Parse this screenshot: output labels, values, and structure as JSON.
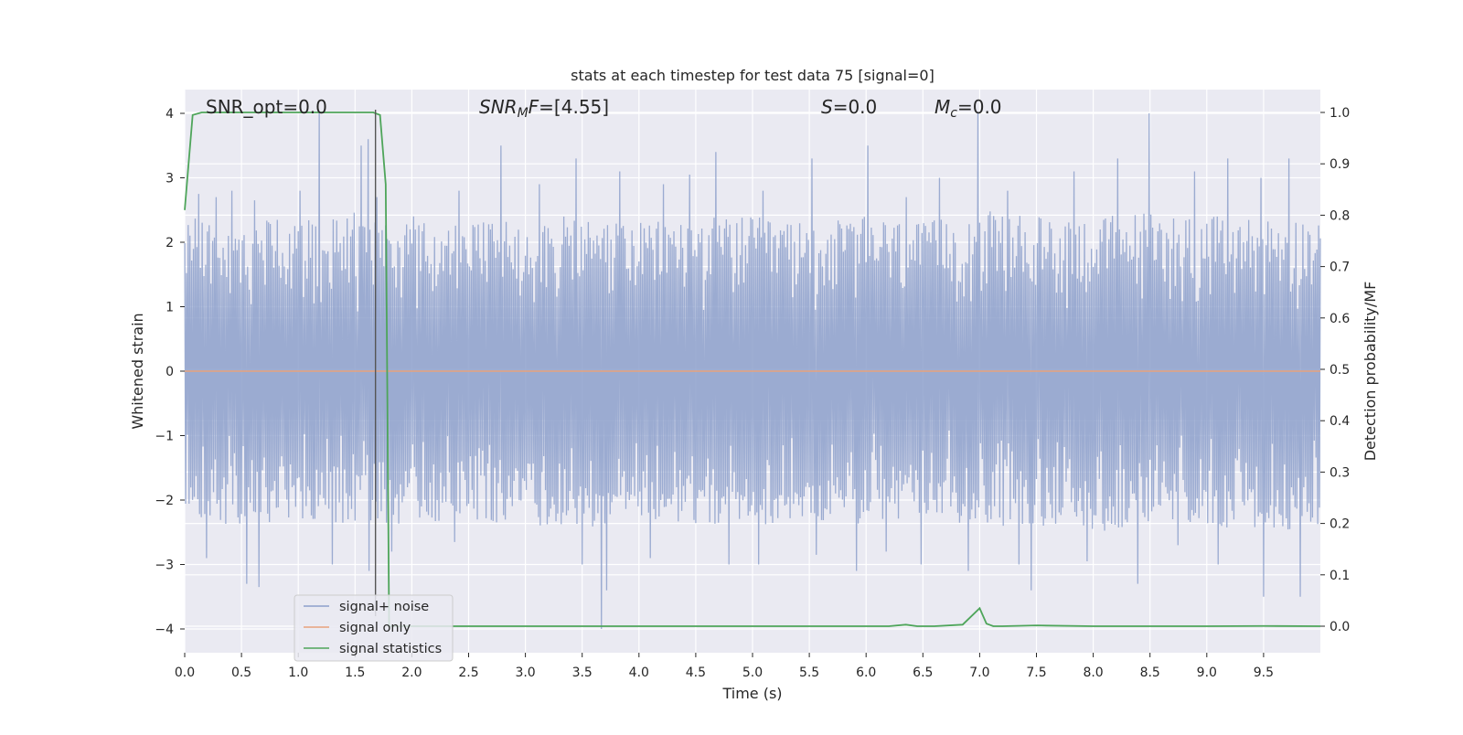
{
  "chart_data": {
    "type": "line",
    "title": "stats at each timestep for test data 75 [signal=0]",
    "xlabel": "Time (s)",
    "ylabel": "Whitened strain",
    "ylabel_right": "Detection probability/MF",
    "xlim": [
      0.0,
      10.0
    ],
    "ylim": [
      -4.4,
      4.4
    ],
    "ylim_right": [
      -0.05,
      1.04
    ],
    "x_ticks": [
      "0.0",
      "0.5",
      "1.0",
      "1.5",
      "2.0",
      "2.5",
      "3.0",
      "3.5",
      "4.0",
      "4.5",
      "5.0",
      "5.5",
      "6.0",
      "6.5",
      "7.0",
      "7.5",
      "8.0",
      "8.5",
      "9.0",
      "9.5"
    ],
    "y_ticks": [
      "4",
      "3",
      "2",
      "1",
      "0",
      "−1",
      "−2",
      "−3",
      "−4"
    ],
    "y_ticks_right": [
      "1.0",
      "0.9",
      "0.8",
      "0.7",
      "0.6",
      "0.5",
      "0.4",
      "0.3",
      "0.2",
      "0.1",
      "0.0"
    ],
    "grid": true,
    "legend_position": "lower-left",
    "annotations": {
      "snr_opt": "SNR_opt=0.0",
      "snr_mf_italic": "SNR",
      "snr_mf_sub": "M",
      "snr_mf_f": "F",
      "snr_mf_value": "=[4.55]",
      "s_label": "S",
      "s_value": "=0.0",
      "mc_label": "M",
      "mc_sub": "c",
      "mc_value": "=0.0"
    },
    "vline_x": 1.68,
    "series": [
      {
        "name": "signal+ noise",
        "color": "#8da0cb",
        "envelope_upper": [
          [
            0.0,
            2.4
          ],
          [
            0.5,
            2.3
          ],
          [
            1.0,
            2.4
          ],
          [
            1.5,
            2.5
          ],
          [
            2.0,
            2.3
          ],
          [
            2.5,
            2.3
          ],
          [
            3.0,
            2.4
          ],
          [
            3.5,
            2.4
          ],
          [
            4.0,
            2.3
          ],
          [
            4.5,
            2.4
          ],
          [
            5.0,
            2.4
          ],
          [
            5.5,
            2.3
          ],
          [
            6.0,
            2.4
          ],
          [
            6.5,
            2.3
          ],
          [
            7.0,
            2.5
          ],
          [
            7.5,
            2.4
          ],
          [
            8.0,
            2.4
          ],
          [
            8.5,
            2.5
          ],
          [
            9.0,
            2.4
          ],
          [
            9.5,
            2.4
          ],
          [
            10.0,
            2.4
          ]
        ],
        "envelope_lower": [
          [
            0.0,
            -2.3
          ],
          [
            0.5,
            -2.4
          ],
          [
            1.0,
            -2.3
          ],
          [
            1.5,
            -2.4
          ],
          [
            2.0,
            -2.4
          ],
          [
            2.5,
            -2.3
          ],
          [
            3.0,
            -2.4
          ],
          [
            3.5,
            -2.5
          ],
          [
            4.0,
            -2.3
          ],
          [
            4.5,
            -2.4
          ],
          [
            5.0,
            -2.4
          ],
          [
            5.5,
            -2.3
          ],
          [
            6.0,
            -2.4
          ],
          [
            6.5,
            -2.3
          ],
          [
            7.0,
            -2.4
          ],
          [
            7.5,
            -2.4
          ],
          [
            8.0,
            -2.5
          ],
          [
            8.5,
            -2.4
          ],
          [
            9.0,
            -2.4
          ],
          [
            9.5,
            -2.5
          ],
          [
            10.0,
            -2.4
          ]
        ],
        "peaks": [
          [
            0.12,
            2.75
          ],
          [
            0.28,
            2.7
          ],
          [
            0.42,
            2.8
          ],
          [
            0.62,
            2.65
          ],
          [
            1.02,
            2.8
          ],
          [
            1.18,
            4.0
          ],
          [
            1.55,
            3.5
          ],
          [
            1.62,
            3.6
          ],
          [
            1.69,
            2.7
          ],
          [
            2.02,
            2.4
          ],
          [
            2.42,
            2.8
          ],
          [
            2.78,
            3.5
          ],
          [
            3.12,
            2.9
          ],
          [
            3.45,
            3.3
          ],
          [
            3.83,
            3.1
          ],
          [
            4.22,
            2.9
          ],
          [
            4.45,
            3.05
          ],
          [
            4.68,
            3.4
          ],
          [
            5.1,
            2.8
          ],
          [
            5.52,
            3.3
          ],
          [
            6.01,
            3.5
          ],
          [
            6.35,
            2.7
          ],
          [
            6.65,
            3.0
          ],
          [
            6.98,
            4.0
          ],
          [
            7.25,
            2.8
          ],
          [
            7.83,
            3.1
          ],
          [
            8.22,
            3.3
          ],
          [
            8.5,
            4.0
          ],
          [
            8.9,
            3.1
          ],
          [
            9.18,
            3.3
          ],
          [
            9.48,
            3.0
          ],
          [
            9.72,
            3.3
          ]
        ],
        "troughs": [
          [
            0.2,
            -2.9
          ],
          [
            0.55,
            -3.3
          ],
          [
            0.65,
            -3.35
          ],
          [
            1.3,
            -3.0
          ],
          [
            1.63,
            -3.1
          ],
          [
            1.82,
            -2.8
          ],
          [
            2.38,
            -2.65
          ],
          [
            3.5,
            -3.0
          ],
          [
            3.67,
            -4.0
          ],
          [
            3.72,
            -3.4
          ],
          [
            4.1,
            -2.9
          ],
          [
            4.8,
            -3.0
          ],
          [
            5.05,
            -3.0
          ],
          [
            5.56,
            -2.85
          ],
          [
            5.92,
            -3.1
          ],
          [
            6.17,
            -2.8
          ],
          [
            6.48,
            -3.0
          ],
          [
            6.9,
            -3.1
          ],
          [
            7.35,
            -3.0
          ],
          [
            7.45,
            -3.4
          ],
          [
            7.95,
            -2.95
          ],
          [
            8.4,
            -3.3
          ],
          [
            8.75,
            -2.7
          ],
          [
            9.1,
            -3.0
          ],
          [
            9.5,
            -3.5
          ],
          [
            9.82,
            -3.5
          ]
        ]
      },
      {
        "name": "signal only",
        "color": "#e8a27d",
        "x": [
          0.0,
          10.0
        ],
        "y": [
          0.0,
          0.0
        ]
      },
      {
        "name": "signal statistics",
        "color": "#4ea55a",
        "axis": "right",
        "x": [
          0.0,
          0.07,
          0.15,
          0.5,
          1.0,
          1.5,
          1.58,
          1.66,
          1.72,
          1.77,
          1.8,
          2.0,
          3.0,
          4.0,
          5.0,
          6.0,
          6.2,
          6.35,
          6.45,
          6.6,
          6.85,
          7.0,
          7.06,
          7.12,
          7.2,
          7.5,
          8.0,
          9.0,
          9.5,
          10.0
        ],
        "y": [
          0.81,
          0.995,
          1.0,
          1.0,
          1.0,
          1.0,
          1.0,
          1.0,
          0.995,
          0.86,
          0.0,
          0.0,
          0.0,
          0.0,
          0.0,
          0.0,
          0.0,
          0.003,
          0.0,
          0.0,
          0.003,
          0.035,
          0.005,
          0.0,
          0.0,
          0.0015,
          0.0,
          0.0,
          0.0005,
          0.0
        ]
      }
    ]
  }
}
